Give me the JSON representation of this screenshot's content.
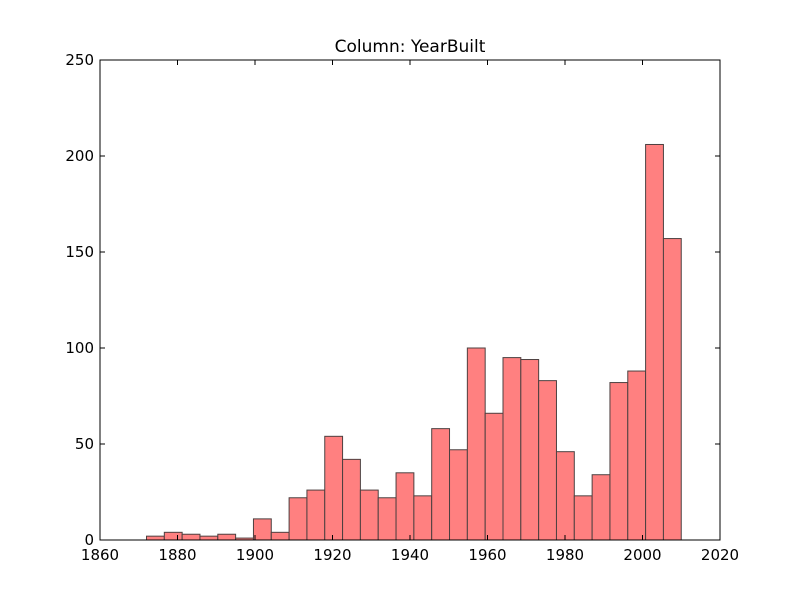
{
  "chart_data": {
    "type": "bar",
    "title": "Column: YearBuilt",
    "xlabel": "",
    "ylabel": "",
    "xlim": [
      1860,
      2020
    ],
    "ylim": [
      0,
      250
    ],
    "x_ticks": [
      "1860",
      "1880",
      "1900",
      "1920",
      "1940",
      "1960",
      "1980",
      "2000",
      "2020"
    ],
    "y_ticks": [
      "0",
      "50",
      "100",
      "150",
      "200",
      "250"
    ],
    "grid": false,
    "legend": "none",
    "bar_color": "#ff8080",
    "edge_color": "#4d4040",
    "bin_start": 1872,
    "bin_end": 2010,
    "bins": [
      {
        "x0": 1872.0,
        "x1": 1876.6,
        "count": 2
      },
      {
        "x0": 1876.6,
        "x1": 1881.2,
        "count": 4
      },
      {
        "x0": 1881.2,
        "x1": 1885.8,
        "count": 3
      },
      {
        "x0": 1885.8,
        "x1": 1890.4,
        "count": 2
      },
      {
        "x0": 1890.4,
        "x1": 1895.0,
        "count": 3
      },
      {
        "x0": 1895.0,
        "x1": 1899.6,
        "count": 1
      },
      {
        "x0": 1899.6,
        "x1": 1904.2,
        "count": 11
      },
      {
        "x0": 1904.2,
        "x1": 1908.8,
        "count": 4
      },
      {
        "x0": 1908.8,
        "x1": 1913.4,
        "count": 22
      },
      {
        "x0": 1913.4,
        "x1": 1918.0,
        "count": 26
      },
      {
        "x0": 1918.0,
        "x1": 1922.6,
        "count": 54
      },
      {
        "x0": 1922.6,
        "x1": 1927.2,
        "count": 42
      },
      {
        "x0": 1927.2,
        "x1": 1931.8,
        "count": 26
      },
      {
        "x0": 1931.8,
        "x1": 1936.4,
        "count": 22
      },
      {
        "x0": 1936.4,
        "x1": 1941.0,
        "count": 35
      },
      {
        "x0": 1941.0,
        "x1": 1945.6,
        "count": 23
      },
      {
        "x0": 1945.6,
        "x1": 1950.2,
        "count": 58
      },
      {
        "x0": 1950.2,
        "x1": 1954.8,
        "count": 47
      },
      {
        "x0": 1954.8,
        "x1": 1959.4,
        "count": 100
      },
      {
        "x0": 1959.4,
        "x1": 1964.0,
        "count": 66
      },
      {
        "x0": 1964.0,
        "x1": 1968.6,
        "count": 95
      },
      {
        "x0": 1968.6,
        "x1": 1973.2,
        "count": 94
      },
      {
        "x0": 1973.2,
        "x1": 1977.8,
        "count": 83
      },
      {
        "x0": 1977.8,
        "x1": 1982.4,
        "count": 46
      },
      {
        "x0": 1982.4,
        "x1": 1987.0,
        "count": 23
      },
      {
        "x0": 1987.0,
        "x1": 1991.6,
        "count": 34
      },
      {
        "x0": 1991.6,
        "x1": 1996.2,
        "count": 82
      },
      {
        "x0": 1996.2,
        "x1": 2000.8,
        "count": 88
      },
      {
        "x0": 2000.8,
        "x1": 2005.4,
        "count": 206
      },
      {
        "x0": 2005.4,
        "x1": 2010.0,
        "count": 157
      }
    ]
  }
}
